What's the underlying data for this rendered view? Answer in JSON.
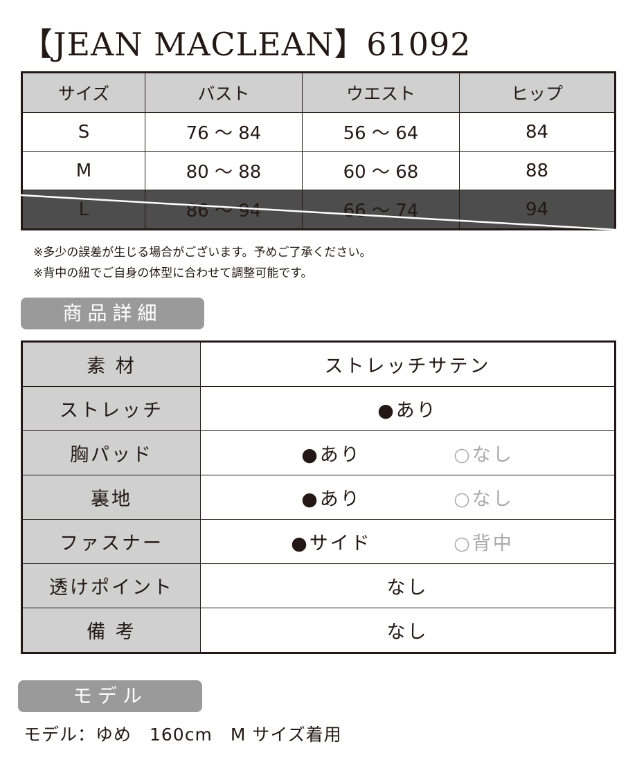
{
  "title": "【JEAN MACLEAN】61092",
  "size_table": {
    "headers": [
      "サイズ",
      "バスト",
      "ウエスト",
      "ヒップ"
    ],
    "rows": [
      {
        "size": "S",
        "bust": "76 〜 84",
        "waist": "56 〜 64",
        "hip": "84",
        "unavailable": false
      },
      {
        "size": "M",
        "bust": "80 〜 88",
        "waist": "60 〜 68",
        "hip": "88",
        "unavailable": false
      },
      {
        "size": "L",
        "bust": "86 〜 94",
        "waist": "66 〜 74",
        "hip": "94",
        "unavailable": true
      }
    ]
  },
  "notes": [
    "※多少の誤差が生じる場合がございます。予めご了承ください。",
    "※背中の紐でご自身の体型に合わせて調整可能です。"
  ],
  "details_heading": "商品詳細",
  "details": {
    "material": {
      "label": "素 材",
      "value": "ストレッチサテン"
    },
    "stretch": {
      "label": "ストレッチ",
      "value": "●あり"
    },
    "pad": {
      "label": "胸パッド",
      "on": "●あり",
      "off": "○なし"
    },
    "lining": {
      "label": "裏地",
      "on": "●あり",
      "off": "○なし"
    },
    "fastener": {
      "label": "ファスナー",
      "on": "●サイド",
      "off": "○背中"
    },
    "sheer": {
      "label": "透けポイント",
      "value": "なし"
    },
    "remarks": {
      "label": "備 考",
      "value": "なし"
    }
  },
  "model_heading": "モデル",
  "model_text": "モデル：ゆめ　160cm　M サイズ着用"
}
